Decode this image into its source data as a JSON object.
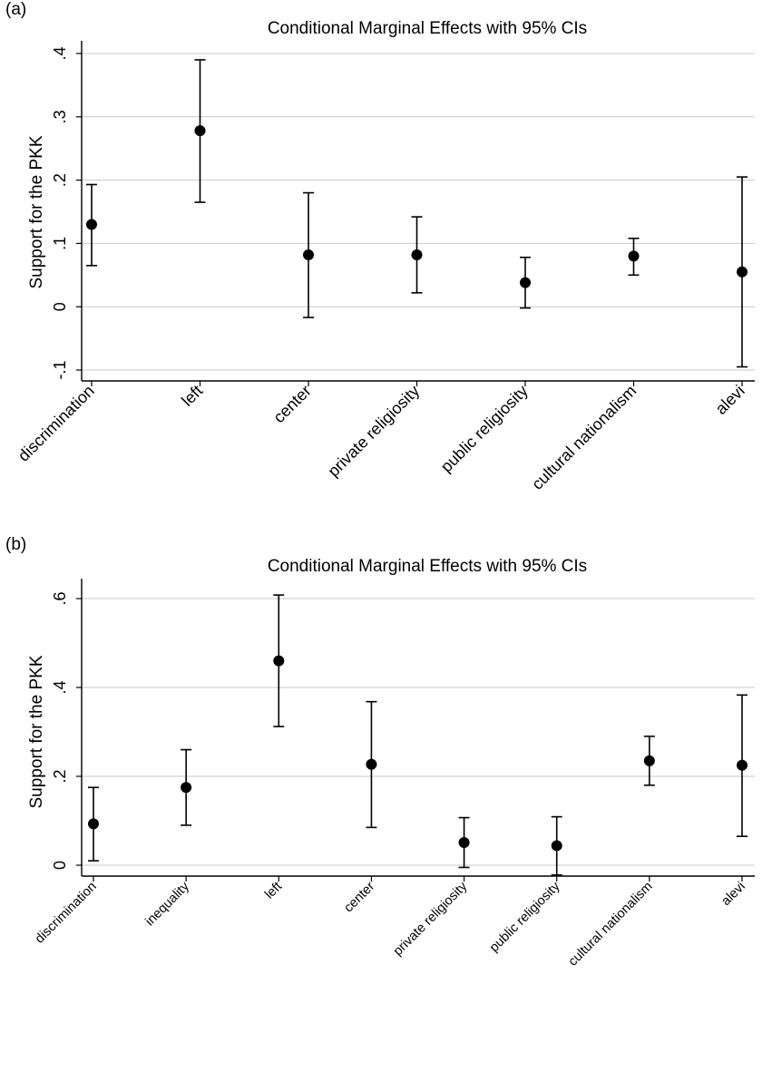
{
  "chart_data": [
    {
      "panel_label": "(a)",
      "type": "scatter",
      "title": "Conditional Marginal Effects with 95% CIs",
      "xlabel": "",
      "ylabel": "Support for the PKK",
      "categories": [
        "discrimination",
        "left",
        "center",
        "private religiosity",
        "public religiosity",
        "cultural nationalism",
        "alevi"
      ],
      "estimate": [
        0.13,
        0.278,
        0.082,
        0.082,
        0.038,
        0.08,
        0.055
      ],
      "ci_lower": [
        0.065,
        0.165,
        -0.017,
        0.022,
        -0.002,
        0.05,
        -0.095
      ],
      "ci_upper": [
        0.193,
        0.39,
        0.18,
        0.142,
        0.078,
        0.108,
        0.205
      ],
      "yticks": [
        -0.1,
        0,
        0.1,
        0.2,
        0.3,
        0.4
      ],
      "ytick_labels": [
        "-.1",
        "0",
        ".1",
        ".2",
        ".3",
        ".4"
      ],
      "ylim": [
        -0.1,
        0.4
      ],
      "grid": true,
      "legend": "none"
    },
    {
      "panel_label": "(b)",
      "type": "scatter",
      "title": "Conditional Marginal Effects with 95% CIs",
      "xlabel": "",
      "ylabel": "Support for the PKK",
      "categories": [
        "discrimination",
        "inequality",
        "left",
        "center",
        "private religiosity",
        "public religiosity",
        "cultural nationalism",
        "alevi"
      ],
      "estimate": [
        0.093,
        0.175,
        0.46,
        0.227,
        0.051,
        0.044,
        0.235,
        0.225
      ],
      "ci_lower": [
        0.01,
        0.09,
        0.312,
        0.085,
        -0.005,
        -0.022,
        0.18,
        0.065
      ],
      "ci_upper": [
        0.175,
        0.26,
        0.608,
        0.368,
        0.107,
        0.109,
        0.29,
        0.383
      ],
      "yticks": [
        0,
        0.2,
        0.4,
        0.6
      ],
      "ytick_labels": [
        "0",
        ".2",
        ".4",
        ".6"
      ],
      "ylim": [
        0,
        0.6
      ],
      "grid": true,
      "legend": "none"
    }
  ]
}
